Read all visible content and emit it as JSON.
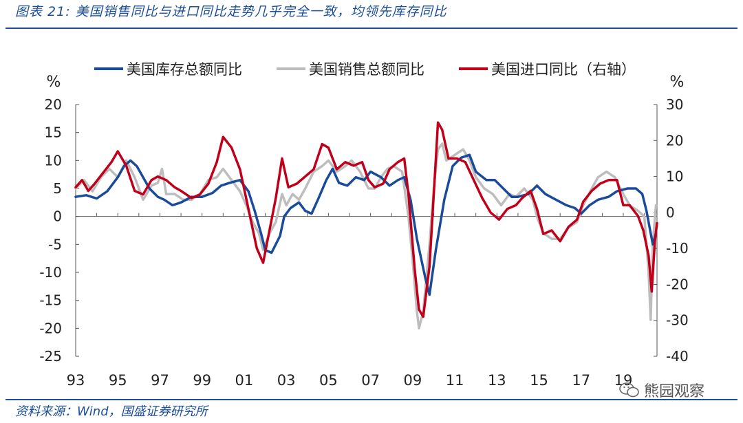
{
  "header": {
    "title": "图表 21: 美国销售同比与进口同比走势几乎完全一致，均领先库存同比"
  },
  "footer": {
    "source": "资料来源：Wind，国盛证券研究所",
    "watermark": "熊园观察"
  },
  "chart_data": {
    "type": "line",
    "title": "",
    "left_axis": {
      "unit": "%",
      "range": [
        -25,
        20
      ],
      "ticks": [
        "20",
        "15",
        "10",
        "5",
        "0",
        "-5",
        "-10",
        "-15",
        "-20",
        "-25"
      ]
    },
    "right_axis": {
      "unit": "%",
      "range": [
        -40,
        30
      ],
      "ticks": [
        "30",
        "20",
        "10",
        "0",
        "-10",
        "-20",
        "-30",
        "-40"
      ]
    },
    "x_range": [
      1993,
      2020.6
    ],
    "x_tick_labels": [
      "93",
      "95",
      "97",
      "99",
      "01",
      "03",
      "05",
      "07",
      "09",
      "11",
      "13",
      "15",
      "17",
      "19"
    ],
    "legend_position": "top",
    "grid": false,
    "series": [
      {
        "name": "美国库存总额同比",
        "color": "#1a4b9b",
        "axis": "left",
        "points": [
          [
            1993.0,
            3.5
          ],
          [
            1993.5,
            3.8
          ],
          [
            1994.0,
            3.2
          ],
          [
            1994.5,
            4.5
          ],
          [
            1995.0,
            7
          ],
          [
            1995.3,
            9
          ],
          [
            1995.6,
            10
          ],
          [
            1995.9,
            9
          ],
          [
            1996.2,
            7
          ],
          [
            1996.5,
            5
          ],
          [
            1996.9,
            3.5
          ],
          [
            1997.2,
            3
          ],
          [
            1997.6,
            2
          ],
          [
            1998.0,
            2.5
          ],
          [
            1998.5,
            3.5
          ],
          [
            1999.0,
            3.5
          ],
          [
            1999.5,
            4.2
          ],
          [
            1999.9,
            5.5
          ],
          [
            2000.3,
            6
          ],
          [
            2000.8,
            6.5
          ],
          [
            2001.2,
            4.5
          ],
          [
            2001.5,
            1
          ],
          [
            2001.8,
            -3
          ],
          [
            2002.0,
            -6
          ],
          [
            2002.3,
            -6.5
          ],
          [
            2002.7,
            -3.5
          ],
          [
            2002.9,
            0
          ],
          [
            2003.2,
            1.5
          ],
          [
            2003.6,
            2.5
          ],
          [
            2003.9,
            1
          ],
          [
            2004.2,
            0.5
          ],
          [
            2004.5,
            3
          ],
          [
            2004.9,
            6.5
          ],
          [
            2005.2,
            8.5
          ],
          [
            2005.5,
            6
          ],
          [
            2005.9,
            5.5
          ],
          [
            2006.3,
            7
          ],
          [
            2006.7,
            6.5
          ],
          [
            2007.0,
            8
          ],
          [
            2007.5,
            7
          ],
          [
            2007.9,
            5.5
          ],
          [
            2008.3,
            6.5
          ],
          [
            2008.6,
            7
          ],
          [
            2008.9,
            3
          ],
          [
            2009.2,
            -4
          ],
          [
            2009.6,
            -11
          ],
          [
            2009.8,
            -14
          ],
          [
            2010.1,
            -6
          ],
          [
            2010.5,
            3
          ],
          [
            2010.9,
            9
          ],
          [
            2011.3,
            10.5
          ],
          [
            2011.7,
            11
          ],
          [
            2012.0,
            8
          ],
          [
            2012.5,
            6.5
          ],
          [
            2012.9,
            6.5
          ],
          [
            2013.3,
            5
          ],
          [
            2013.7,
            3.5
          ],
          [
            2014.0,
            3.5
          ],
          [
            2014.5,
            4
          ],
          [
            2014.9,
            5.5
          ],
          [
            2015.3,
            4
          ],
          [
            2015.8,
            3
          ],
          [
            2016.3,
            2
          ],
          [
            2016.7,
            1.5
          ],
          [
            2017.0,
            0.5
          ],
          [
            2017.4,
            2
          ],
          [
            2017.8,
            3
          ],
          [
            2018.3,
            3.5
          ],
          [
            2018.7,
            4.5
          ],
          [
            2019.2,
            5
          ],
          [
            2019.6,
            5
          ],
          [
            2019.9,
            4
          ],
          [
            2020.1,
            1
          ],
          [
            2020.3,
            -3
          ],
          [
            2020.4,
            -5
          ],
          [
            2020.55,
            -3
          ]
        ]
      },
      {
        "name": "美国销售总额同比",
        "color": "#bdbdbd",
        "axis": "left",
        "points": [
          [
            1993.0,
            5
          ],
          [
            1993.4,
            6.5
          ],
          [
            1993.8,
            4.5
          ],
          [
            1994.2,
            7
          ],
          [
            1994.6,
            8.5
          ],
          [
            1995.0,
            7
          ],
          [
            1995.4,
            10
          ],
          [
            1995.8,
            7
          ],
          [
            1996.2,
            3
          ],
          [
            1996.6,
            5.5
          ],
          [
            1996.9,
            6
          ],
          [
            1997.1,
            8.5
          ],
          [
            1997.3,
            4
          ],
          [
            1997.7,
            4
          ],
          [
            1998.1,
            3
          ],
          [
            1998.5,
            3
          ],
          [
            1998.9,
            4
          ],
          [
            1999.3,
            6.5
          ],
          [
            1999.7,
            7
          ],
          [
            2000.0,
            8.5
          ],
          [
            2000.4,
            6.5
          ],
          [
            2000.8,
            4.5
          ],
          [
            2001.1,
            2
          ],
          [
            2001.4,
            -1
          ],
          [
            2001.7,
            -3
          ],
          [
            2001.9,
            -6
          ],
          [
            2002.2,
            -3
          ],
          [
            2002.5,
            -1
          ],
          [
            2002.8,
            4
          ],
          [
            2003.0,
            2
          ],
          [
            2003.3,
            4
          ],
          [
            2003.6,
            3
          ],
          [
            2003.9,
            5
          ],
          [
            2004.3,
            8
          ],
          [
            2004.7,
            9
          ],
          [
            2005.0,
            10
          ],
          [
            2005.4,
            8
          ],
          [
            2005.8,
            9
          ],
          [
            2006.1,
            10
          ],
          [
            2006.5,
            8
          ],
          [
            2006.9,
            5
          ],
          [
            2007.2,
            5
          ],
          [
            2007.5,
            7
          ],
          [
            2007.8,
            8.5
          ],
          [
            2008.1,
            9
          ],
          [
            2008.5,
            8
          ],
          [
            2008.8,
            0
          ],
          [
            2009.0,
            -8
          ],
          [
            2009.2,
            -17
          ],
          [
            2009.3,
            -20
          ],
          [
            2009.5,
            -17
          ],
          [
            2009.8,
            -5
          ],
          [
            2010.0,
            5
          ],
          [
            2010.2,
            12
          ],
          [
            2010.4,
            13
          ],
          [
            2010.6,
            10
          ],
          [
            2011.0,
            11
          ],
          [
            2011.4,
            12
          ],
          [
            2011.7,
            10
          ],
          [
            2012.0,
            7
          ],
          [
            2012.4,
            5
          ],
          [
            2012.8,
            4
          ],
          [
            2013.2,
            2
          ],
          [
            2013.6,
            4
          ],
          [
            2013.9,
            3.5
          ],
          [
            2014.3,
            5
          ],
          [
            2014.7,
            3
          ],
          [
            2014.9,
            0
          ],
          [
            2015.2,
            -3
          ],
          [
            2015.6,
            -4
          ],
          [
            2016.0,
            -4
          ],
          [
            2016.4,
            -2
          ],
          [
            2016.8,
            -1
          ],
          [
            2017.1,
            2
          ],
          [
            2017.5,
            5
          ],
          [
            2017.8,
            7
          ],
          [
            2018.2,
            8
          ],
          [
            2018.6,
            7
          ],
          [
            2019.0,
            4
          ],
          [
            2019.3,
            2
          ],
          [
            2019.7,
            1
          ],
          [
            2020.0,
            0
          ],
          [
            2020.2,
            -10
          ],
          [
            2020.3,
            -18.5
          ],
          [
            2020.4,
            -5
          ],
          [
            2020.55,
            2
          ]
        ]
      },
      {
        "name": "美国进口同比（右轴）",
        "color": "#c0001a",
        "axis": "right",
        "points": [
          [
            1993.0,
            7
          ],
          [
            1993.3,
            9
          ],
          [
            1993.6,
            6
          ],
          [
            1993.9,
            8
          ],
          [
            1994.3,
            11
          ],
          [
            1994.7,
            14
          ],
          [
            1995.0,
            17
          ],
          [
            1995.4,
            13
          ],
          [
            1995.8,
            6
          ],
          [
            1996.2,
            5
          ],
          [
            1996.6,
            9
          ],
          [
            1996.9,
            10
          ],
          [
            1997.3,
            9
          ],
          [
            1997.7,
            7
          ],
          [
            1998.0,
            6
          ],
          [
            1998.5,
            4
          ],
          [
            1998.9,
            5
          ],
          [
            1999.3,
            8
          ],
          [
            1999.7,
            14
          ],
          [
            2000.0,
            21
          ],
          [
            2000.4,
            18
          ],
          [
            2000.8,
            12
          ],
          [
            2001.2,
            1
          ],
          [
            2001.6,
            -10
          ],
          [
            2001.9,
            -14
          ],
          [
            2002.2,
            -5
          ],
          [
            2002.5,
            4
          ],
          [
            2002.8,
            15
          ],
          [
            2003.1,
            7
          ],
          [
            2003.5,
            8
          ],
          [
            2003.9,
            10
          ],
          [
            2004.3,
            12
          ],
          [
            2004.7,
            19
          ],
          [
            2005.0,
            18
          ],
          [
            2005.4,
            12
          ],
          [
            2005.8,
            14
          ],
          [
            2006.2,
            13
          ],
          [
            2006.6,
            14
          ],
          [
            2006.9,
            9
          ],
          [
            2007.2,
            7
          ],
          [
            2007.6,
            8
          ],
          [
            2007.9,
            12
          ],
          [
            2008.3,
            14
          ],
          [
            2008.6,
            15
          ],
          [
            2008.8,
            5
          ],
          [
            2009.1,
            -16
          ],
          [
            2009.3,
            -27
          ],
          [
            2009.5,
            -29
          ],
          [
            2009.8,
            -15
          ],
          [
            2010.0,
            5
          ],
          [
            2010.2,
            25
          ],
          [
            2010.4,
            23
          ],
          [
            2010.7,
            15
          ],
          [
            2011.1,
            15
          ],
          [
            2011.5,
            14
          ],
          [
            2011.9,
            9
          ],
          [
            2012.3,
            4
          ],
          [
            2012.7,
            0
          ],
          [
            2013.1,
            -2
          ],
          [
            2013.5,
            1
          ],
          [
            2013.9,
            2
          ],
          [
            2014.2,
            4
          ],
          [
            2014.6,
            6
          ],
          [
            2014.9,
            1
          ],
          [
            2015.2,
            -6
          ],
          [
            2015.6,
            -5
          ],
          [
            2016.0,
            -8
          ],
          [
            2016.4,
            -4
          ],
          [
            2016.8,
            -2
          ],
          [
            2017.1,
            3
          ],
          [
            2017.5,
            6
          ],
          [
            2017.9,
            8
          ],
          [
            2018.3,
            9
          ],
          [
            2018.7,
            9
          ],
          [
            2019.0,
            2
          ],
          [
            2019.3,
            2
          ],
          [
            2019.7,
            -1
          ],
          [
            2019.95,
            -5
          ],
          [
            2020.2,
            -12
          ],
          [
            2020.35,
            -22
          ],
          [
            2020.5,
            -8
          ],
          [
            2020.6,
            -3
          ]
        ]
      }
    ]
  }
}
